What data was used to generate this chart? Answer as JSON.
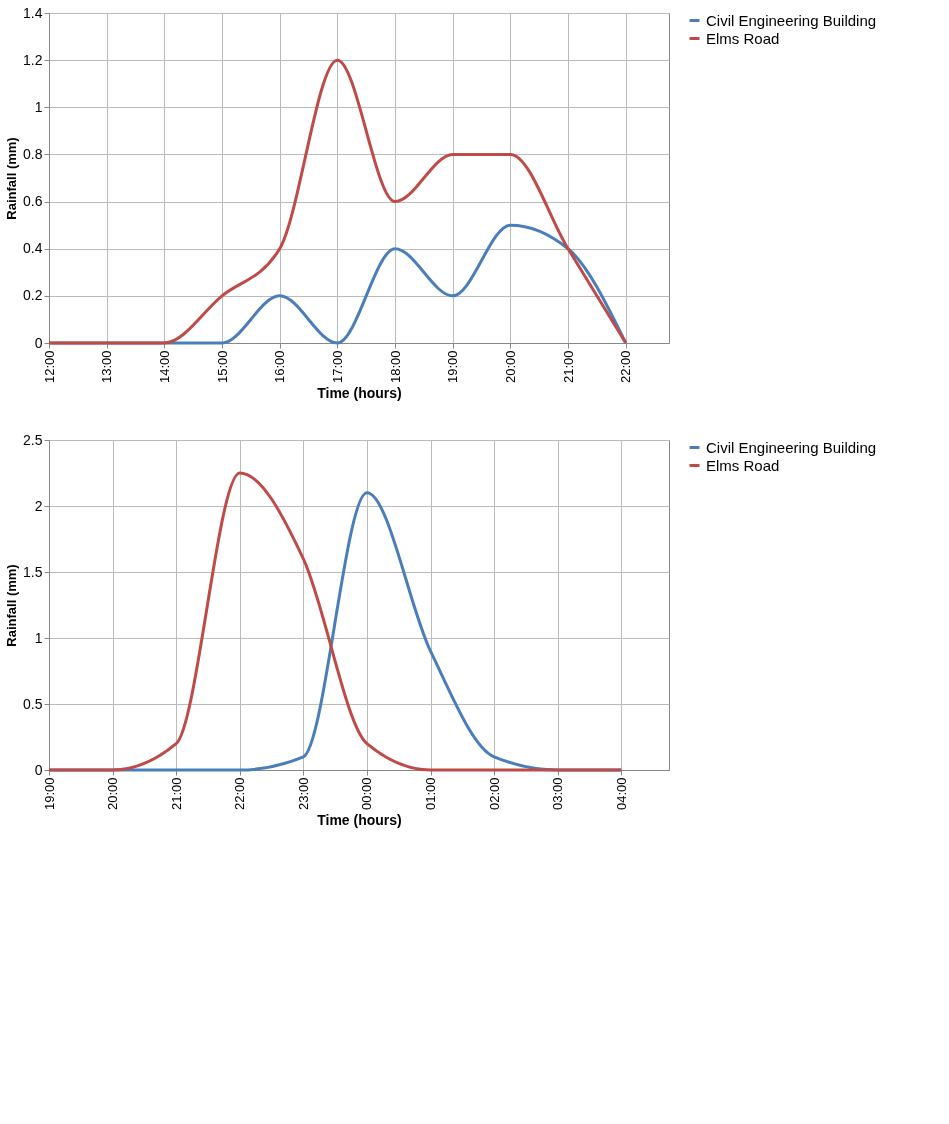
{
  "chart_data": [
    {
      "type": "line",
      "xlabel": "Time (hours)",
      "ylabel": "Rainfall (mm)",
      "grid": true,
      "legend": "top right",
      "categories": [
        "12:00",
        "13:00",
        "14:00",
        "15:00",
        "16:00",
        "17:00",
        "18:00",
        "19:00",
        "20:00",
        "21:00",
        "22:00"
      ],
      "ylim": [
        0,
        1.4
      ],
      "yticks": [
        0,
        0.2,
        0.4,
        0.6,
        0.8,
        1,
        1.2,
        1.4
      ],
      "series": [
        {
          "name": "Civil Engineering Building",
          "color": "#4a7ebb",
          "values": [
            0,
            0,
            0,
            0,
            0.2,
            0,
            0.4,
            0.2,
            0.5,
            0.4,
            0
          ]
        },
        {
          "name": "Elms Road",
          "color": "#be4b48",
          "values": [
            0,
            0,
            0,
            0.2,
            0.4,
            1.2,
            0.6,
            0.8,
            0.8,
            0.4,
            0
          ]
        }
      ]
    },
    {
      "type": "line",
      "xlabel": "Time (hours)",
      "ylabel": "Rainfall (mm)",
      "grid": true,
      "legend": "top right",
      "categories": [
        "19:00",
        "20:00",
        "21:00",
        "22:00",
        "23:00",
        "00:00",
        "01:00",
        "02:00",
        "03:00",
        "04:00"
      ],
      "ylim": [
        0,
        2.5
      ],
      "yticks": [
        0,
        0.5,
        1,
        1.5,
        2,
        2.5
      ],
      "series": [
        {
          "name": "Civil Engineering Building",
          "color": "#4a7ebb",
          "values": [
            0,
            0,
            0,
            0,
            0.1,
            2.1,
            0.9,
            0.1,
            0,
            0
          ]
        },
        {
          "name": "Elms Road",
          "color": "#be4b48",
          "values": [
            0,
            0,
            0.2,
            2.25,
            1.6,
            0.2,
            0,
            0,
            0,
            0
          ]
        }
      ]
    }
  ]
}
